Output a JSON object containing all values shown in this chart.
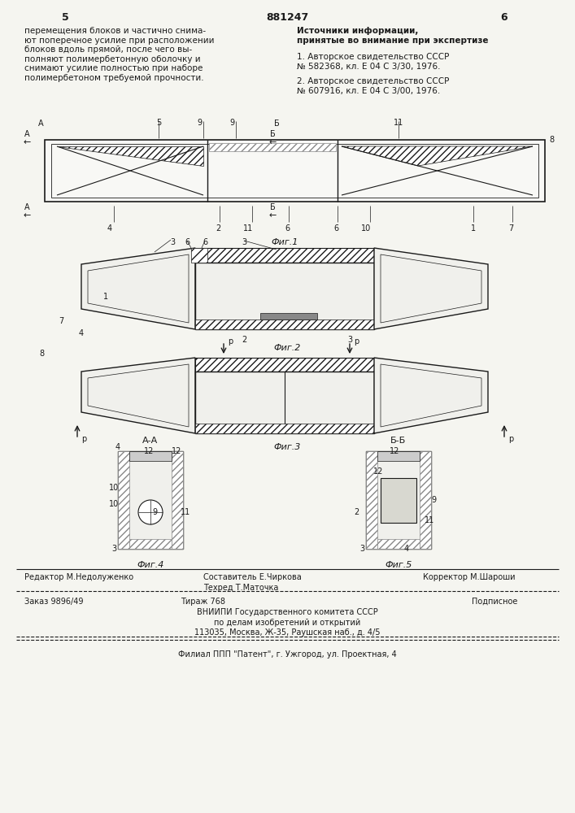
{
  "patent_number": "881247",
  "page_left": "5",
  "page_right": "6",
  "bg_color": "#f5f5f0",
  "text_color": "#1a1a1a",
  "left_text": "перемещения блоков и частично снима-\nют поперечное усилие при расположении\nблоков вдоль прямой, после чего вы-\nполняют полимербетонную оболочку и\nснимают усилие полностью при наборе\nполимербетоном требуемой прочности.",
  "right_title": "Источники информации,\nпринятые во внимание при экспертизе",
  "right_ref1": "1. Авторское свидетельство СССР\n№ 582368, кл. Е 04 С 3/30, 1976.",
  "right_ref2": "2. Авторское свидетельство СССР\n№ 607916, кл. Е 04 С 3/00, 1976.",
  "fig1_label": "Фиг.1",
  "fig2_label": "Фиг.2",
  "fig3_label": "Фиг.3",
  "fig4_label": "Фиг.4",
  "fig5_label": "Фиг.5",
  "footer_editor": "Редактор М.Недолуженко",
  "footer_composer": "Составитель Е.Чиркова",
  "footer_corrector": "Корректор М.Шароши",
  "footer_tech": "Техред Т.Маточка",
  "footer_order": "Заказ 9896/49",
  "footer_circulation": "Тираж 768",
  "footer_subscription": "Подписное",
  "footer_vniip": "ВНИИПИ Государственного комитета СССР",
  "footer_affairs": "по делам изобретений и открытий",
  "footer_address": "113035, Москва, Ж-35, Раушская наб., д. 4/5",
  "footer_branch": "Филиал ППП \"Патент\", г. Ужгород, ул. Проектная, 4"
}
